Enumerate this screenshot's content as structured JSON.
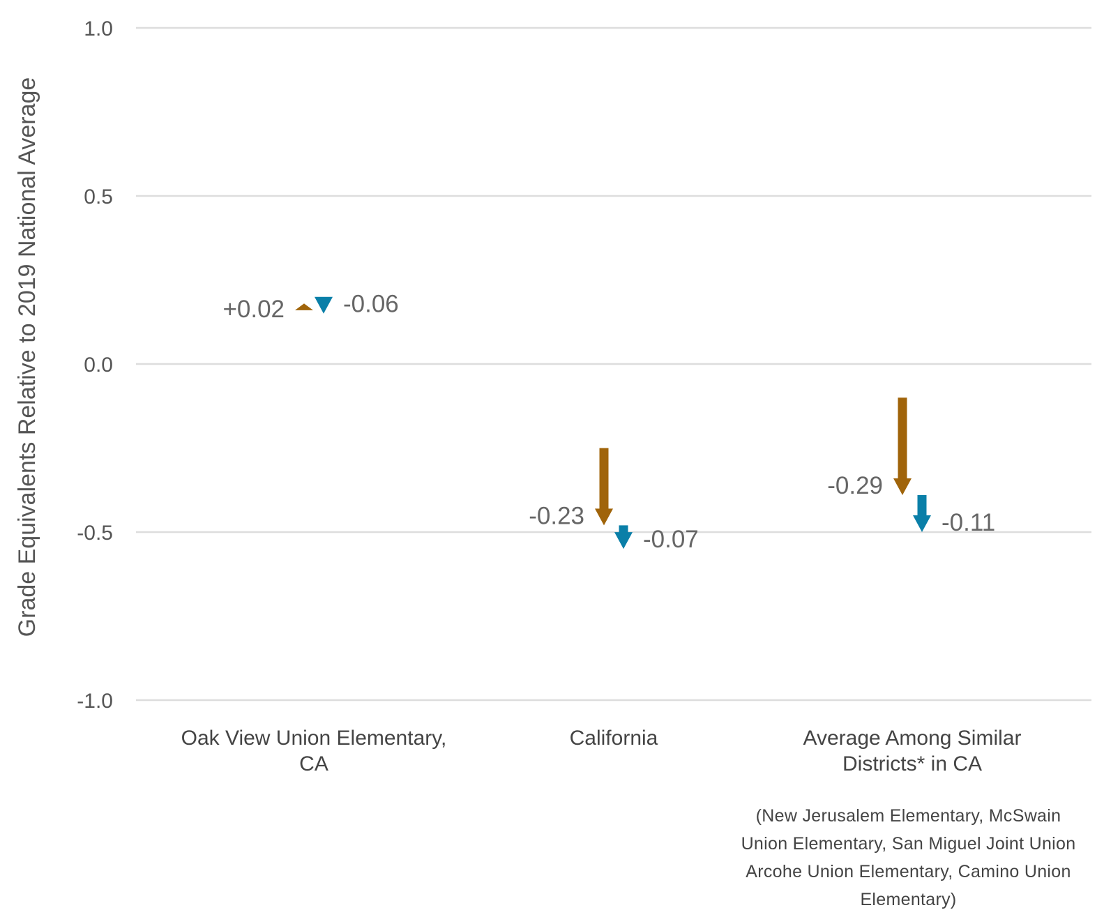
{
  "chart_data": {
    "type": "arrow",
    "title": "",
    "ylabel": "Grade Equivalents Relative to 2019 National Average",
    "ylim": [
      -1.0,
      1.0
    ],
    "yticks": [
      1.0,
      0.5,
      0.0,
      -0.5,
      -1.0
    ],
    "ytick_labels": [
      "1.0",
      "0.5",
      "0.0",
      "-0.5",
      "-1.0"
    ],
    "grid": true,
    "categories": [
      {
        "lines": [
          "Oak View Union Elementary,",
          "CA"
        ]
      },
      {
        "lines": [
          "California"
        ]
      },
      {
        "lines": [
          "Average Among Similar",
          "Districts* in CA"
        ]
      }
    ],
    "colors": {
      "first": "#A0640A",
      "second": "#0A7FA8"
    },
    "series": [
      {
        "color": "#A0640A",
        "start": [
          0.16,
          -0.25,
          -0.1
        ],
        "end": [
          0.18,
          -0.48,
          -0.39
        ],
        "labels": [
          "+0.02",
          "-0.23",
          "-0.29"
        ]
      },
      {
        "color": "#0A7FA8",
        "start": [
          0.2,
          -0.48,
          -0.39
        ],
        "end": [
          0.15,
          -0.55,
          -0.5
        ],
        "labels": [
          "-0.06",
          "-0.07",
          "-0.11"
        ]
      }
    ],
    "note_lines": [
      "(New Jerusalem Elementary, McSwain",
      "Union Elementary, San Miguel Joint Union",
      "Arcohe Union Elementary, Camino Union",
      "Elementary)"
    ]
  }
}
